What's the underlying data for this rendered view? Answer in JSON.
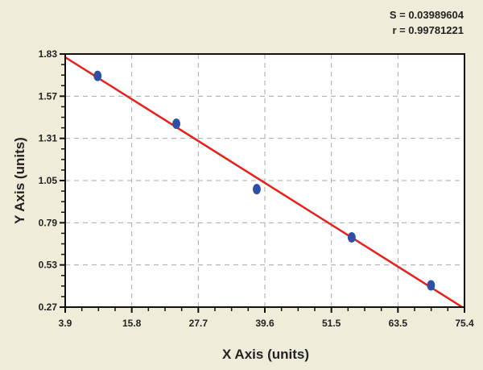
{
  "chart_data": {
    "type": "scatter",
    "title": "",
    "xlabel": "X Axis (units)",
    "ylabel": "Y Axis (units)",
    "xlim": [
      3.9,
      75.4
    ],
    "ylim": [
      0.27,
      1.83
    ],
    "xticks": [
      "3.9",
      "15.8",
      "27.7",
      "39.6",
      "51.5",
      "63.5",
      "75.4"
    ],
    "yticks": [
      "0.27",
      "0.53",
      "0.79",
      "1.05",
      "1.31",
      "1.57",
      "1.83"
    ],
    "grid": true,
    "points": [
      {
        "x": 9.7,
        "y": 1.695
      },
      {
        "x": 23.8,
        "y": 1.4
      },
      {
        "x": 38.2,
        "y": 0.997
      },
      {
        "x": 55.2,
        "y": 0.7
      },
      {
        "x": 69.4,
        "y": 0.404
      }
    ],
    "fit_line": {
      "x": [
        3.9,
        75.0
      ],
      "y": [
        1.81,
        0.27
      ]
    },
    "annotations": [
      "S = 0.03989604",
      "r = 0.99781221"
    ],
    "colors": {
      "points": "#2e4fa3",
      "fit_line": "#e8201c",
      "background": "#efedd9",
      "grid": "#aaaaaa"
    }
  }
}
